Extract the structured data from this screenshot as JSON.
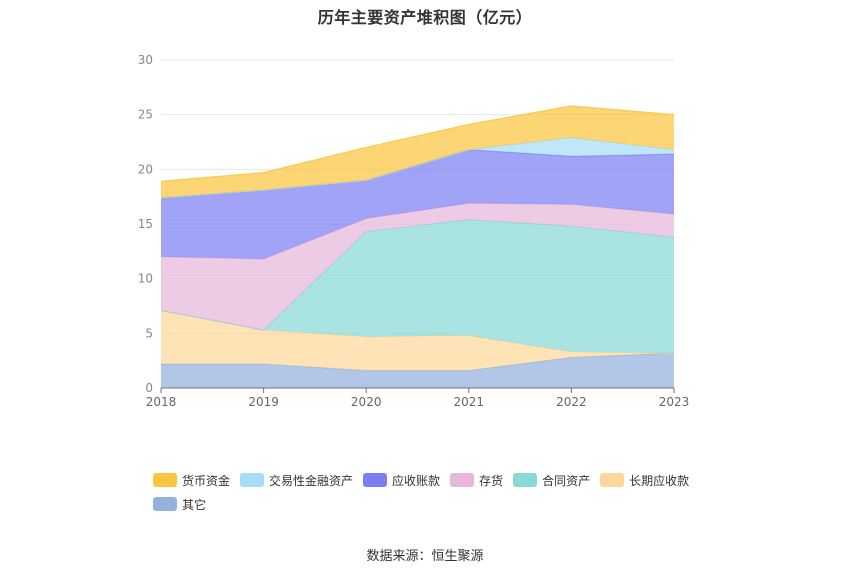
{
  "chart_data": {
    "type": "area",
    "stacked": true,
    "title": "历年主要资产堆积图（亿元）",
    "categories": [
      "2018",
      "2019",
      "2020",
      "2021",
      "2022",
      "2023"
    ],
    "ylim": [
      0,
      30
    ],
    "yticks": [
      0,
      5,
      10,
      15,
      20,
      25,
      30
    ],
    "grid": true,
    "legend_position": "bottom",
    "series": [
      {
        "name": "货币资金",
        "color": "#FBC53F",
        "values": [
          1.5,
          1.6,
          3.0,
          2.3,
          2.9,
          3.2
        ]
      },
      {
        "name": "交易性金融资产",
        "color": "#A7DDF7",
        "values": [
          0.0,
          0.0,
          0.0,
          0.0,
          1.7,
          0.4
        ]
      },
      {
        "name": "应收账款",
        "color": "#7B7FF2",
        "values": [
          5.4,
          6.3,
          3.5,
          4.9,
          4.4,
          5.5
        ]
      },
      {
        "name": "存货",
        "color": "#E8B7D9",
        "values": [
          4.9,
          6.5,
          1.2,
          1.5,
          2.0,
          2.1
        ]
      },
      {
        "name": "合同资产",
        "color": "#88D9D7",
        "values": [
          0.0,
          0.0,
          9.6,
          10.6,
          11.5,
          10.6
        ]
      },
      {
        "name": "长期应收款",
        "color": "#FDD89A",
        "values": [
          4.9,
          3.1,
          3.1,
          3.2,
          0.5,
          0.0
        ]
      },
      {
        "name": "其它",
        "color": "#94B2DE",
        "values": [
          2.2,
          2.2,
          1.6,
          1.6,
          2.8,
          3.2
        ]
      }
    ]
  },
  "source_text": "数据来源：恒生聚源"
}
